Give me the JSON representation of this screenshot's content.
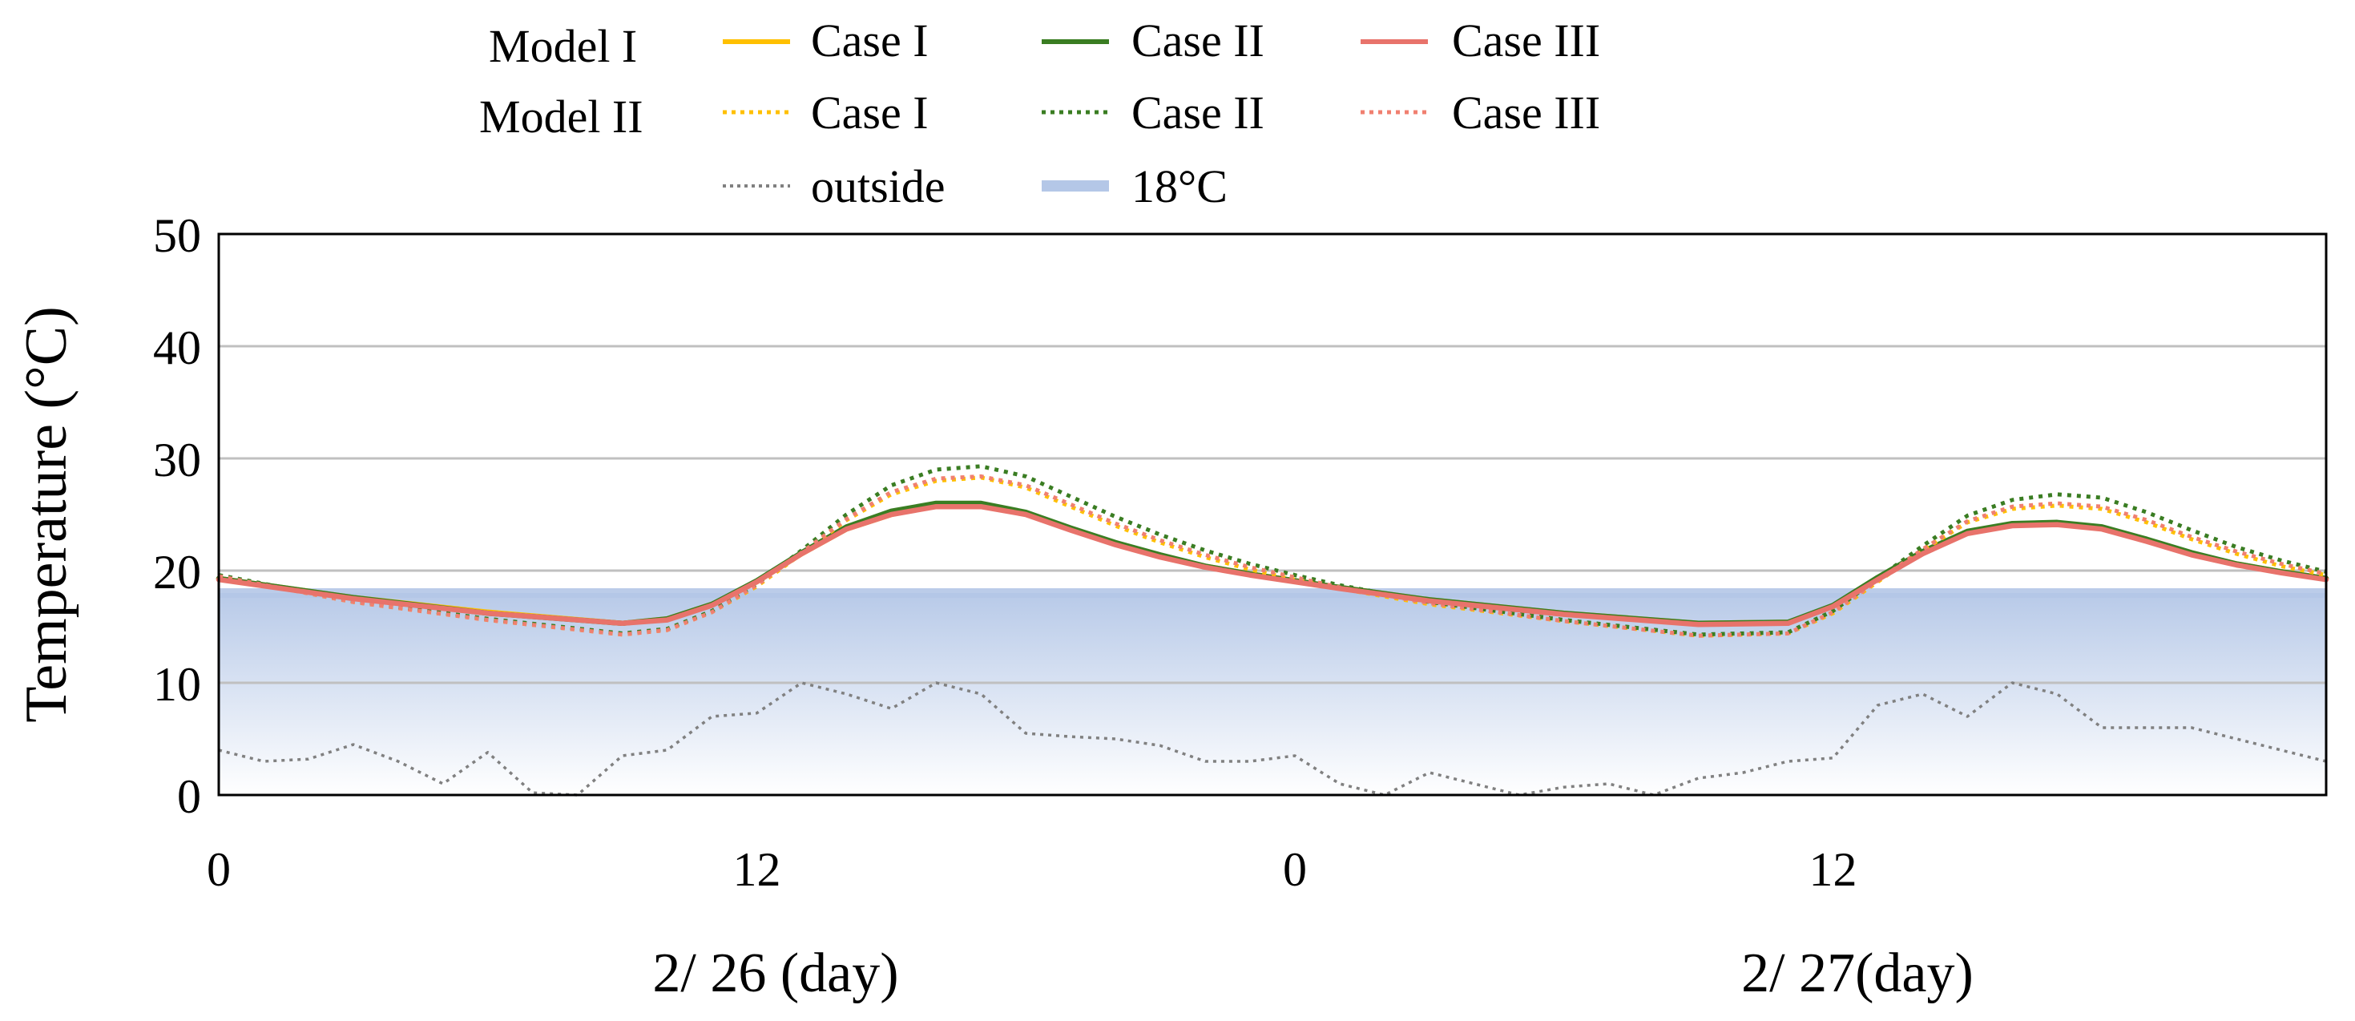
{
  "chart_data": {
    "type": "line",
    "ylabel": "Temperature (°C)",
    "ylim": [
      0,
      50
    ],
    "yticks": [
      "0",
      "10",
      "20",
      "30",
      "40",
      "50"
    ],
    "ytick_values": [
      0,
      10,
      20,
      30,
      40,
      50
    ],
    "xlim": [
      0,
      47
    ],
    "x_tick_values": [
      0,
      12,
      24,
      36
    ],
    "xticks": [
      "0",
      "12",
      "0",
      "12"
    ],
    "day_labels": [
      "2/ 26 (day)",
      "2/ 27(day)"
    ],
    "grid": true,
    "legend": {
      "row_labels": [
        "Model I",
        "Model II"
      ],
      "entries": [
        "Case I",
        "Case II",
        "Case III",
        "Case I",
        "Case II",
        "Case III",
        "outside",
        "18°C"
      ]
    },
    "band": {
      "label": "18°C",
      "value": 18,
      "color": "#b4c7e7"
    },
    "series": [
      {
        "name": "Model I Case I",
        "color": "#ffc000",
        "dash": "solid",
        "x": [
          0,
          3,
          6,
          9,
          10,
          11,
          12,
          13,
          14,
          15,
          16,
          17,
          18,
          19,
          20,
          21,
          22,
          23,
          24,
          25,
          27,
          30,
          33,
          35,
          36,
          37,
          38,
          39,
          40,
          41,
          42,
          43,
          44,
          45,
          46,
          47
        ],
        "values": [
          19.3,
          17.6,
          16.3,
          15.3,
          15.7,
          17.0,
          19.0,
          21.5,
          23.7,
          25.0,
          25.8,
          25.9,
          25.1,
          23.7,
          22.4,
          21.3,
          20.4,
          19.7,
          19.1,
          18.5,
          17.4,
          16.2,
          15.3,
          15.4,
          16.8,
          19.3,
          21.6,
          23.4,
          24.1,
          24.2,
          23.8,
          22.7,
          21.5,
          20.6,
          19.9,
          19.3
        ]
      },
      {
        "name": "Model I Case II",
        "color": "#3a7d22",
        "dash": "solid",
        "x": [
          0,
          3,
          6,
          9,
          10,
          11,
          12,
          13,
          14,
          15,
          16,
          17,
          18,
          19,
          20,
          21,
          22,
          23,
          24,
          25,
          27,
          30,
          33,
          35,
          36,
          37,
          38,
          39,
          40,
          41,
          42,
          43,
          44,
          45,
          46,
          47
        ],
        "values": [
          19.3,
          17.6,
          16.2,
          15.3,
          15.7,
          17.0,
          19.1,
          21.6,
          23.9,
          25.3,
          26.0,
          26.0,
          25.2,
          23.8,
          22.5,
          21.4,
          20.4,
          19.7,
          19.1,
          18.5,
          17.4,
          16.2,
          15.3,
          15.4,
          16.9,
          19.4,
          21.7,
          23.5,
          24.2,
          24.3,
          23.9,
          22.8,
          21.6,
          20.6,
          19.9,
          19.3
        ]
      },
      {
        "name": "Model I Case III",
        "color": "#e8736b",
        "dash": "solid",
        "x": [
          0,
          3,
          6,
          9,
          10,
          11,
          12,
          13,
          14,
          15,
          16,
          17,
          18,
          19,
          20,
          21,
          22,
          23,
          24,
          25,
          27,
          30,
          33,
          35,
          36,
          37,
          38,
          39,
          40,
          41,
          42,
          43,
          44,
          45,
          46,
          47
        ],
        "values": [
          19.2,
          17.5,
          16.2,
          15.3,
          15.6,
          16.9,
          19.0,
          21.5,
          23.7,
          25.0,
          25.7,
          25.7,
          25.0,
          23.6,
          22.3,
          21.2,
          20.3,
          19.6,
          19.0,
          18.4,
          17.3,
          16.1,
          15.2,
          15.3,
          16.8,
          19.2,
          21.5,
          23.3,
          24.0,
          24.1,
          23.7,
          22.6,
          21.4,
          20.5,
          19.8,
          19.2
        ]
      },
      {
        "name": "Model II Case I",
        "color": "#ffc000",
        "dash": "dotted",
        "x": [
          0,
          3,
          6,
          9,
          10,
          11,
          12,
          13,
          14,
          15,
          16,
          17,
          18,
          19,
          20,
          21,
          22,
          23,
          24,
          25,
          27,
          30,
          33,
          35,
          36,
          37,
          38,
          39,
          40,
          41,
          42,
          43,
          44,
          45,
          46,
          47
        ],
        "values": [
          19.5,
          17.2,
          15.6,
          14.3,
          14.7,
          16.3,
          18.6,
          21.5,
          24.5,
          26.8,
          28.0,
          28.3,
          27.4,
          25.7,
          24.0,
          22.5,
          21.2,
          20.1,
          19.2,
          18.4,
          17.0,
          15.5,
          14.2,
          14.4,
          16.2,
          19.0,
          21.8,
          24.3,
          25.5,
          25.8,
          25.5,
          24.3,
          22.8,
          21.5,
          20.4,
          19.6
        ]
      },
      {
        "name": "Model II Case II",
        "color": "#3a7d22",
        "dash": "dotted",
        "x": [
          0,
          3,
          6,
          9,
          10,
          11,
          12,
          13,
          14,
          15,
          16,
          17,
          18,
          19,
          20,
          21,
          22,
          23,
          24,
          25,
          27,
          30,
          33,
          35,
          36,
          37,
          38,
          39,
          40,
          41,
          42,
          43,
          44,
          45,
          46,
          47
        ],
        "values": [
          19.6,
          17.3,
          15.7,
          14.4,
          14.8,
          16.4,
          18.8,
          21.8,
          25.0,
          27.6,
          29.0,
          29.3,
          28.4,
          26.6,
          24.8,
          23.2,
          21.8,
          20.6,
          19.6,
          18.7,
          17.2,
          15.6,
          14.3,
          14.5,
          16.4,
          19.3,
          22.2,
          24.9,
          26.3,
          26.8,
          26.5,
          25.2,
          23.6,
          22.1,
          20.9,
          19.9
        ]
      },
      {
        "name": "Model II Case III",
        "color": "#f08070",
        "dash": "dotted",
        "x": [
          0,
          3,
          6,
          9,
          10,
          11,
          12,
          13,
          14,
          15,
          16,
          17,
          18,
          19,
          20,
          21,
          22,
          23,
          24,
          25,
          27,
          30,
          33,
          35,
          36,
          37,
          38,
          39,
          40,
          41,
          42,
          43,
          44,
          45,
          46,
          47
        ],
        "values": [
          19.5,
          17.2,
          15.6,
          14.3,
          14.7,
          16.3,
          18.7,
          21.6,
          24.6,
          27.0,
          28.2,
          28.4,
          27.6,
          25.9,
          24.2,
          22.7,
          21.4,
          20.3,
          19.4,
          18.5,
          17.1,
          15.5,
          14.2,
          14.4,
          16.3,
          19.1,
          21.9,
          24.4,
          25.7,
          26.0,
          25.7,
          24.5,
          23.0,
          21.7,
          20.6,
          19.7
        ]
      },
      {
        "name": "outside",
        "color": "#808080",
        "dash": "dotted",
        "x": [
          0,
          1,
          2,
          3,
          4,
          5,
          6,
          7,
          8,
          9,
          10,
          11,
          12,
          13,
          14,
          15,
          16,
          17,
          18,
          19,
          20,
          21,
          22,
          23,
          24,
          25,
          26,
          27,
          28,
          29,
          30,
          31,
          32,
          33,
          34,
          35,
          36,
          37,
          38,
          39,
          40,
          41,
          42,
          43,
          44,
          45,
          46,
          47
        ],
        "values": [
          4.0,
          3.0,
          3.2,
          4.5,
          3.0,
          1.0,
          3.8,
          0.2,
          0.0,
          3.5,
          4.0,
          7.0,
          7.3,
          10.0,
          9.0,
          7.7,
          10.0,
          9.0,
          5.5,
          5.2,
          5.0,
          4.4,
          3.0,
          3.0,
          3.5,
          1.0,
          0.0,
          2.0,
          1.0,
          0.0,
          0.7,
          1.0,
          0.0,
          1.5,
          2.0,
          3.0,
          3.3,
          8.0,
          9.0,
          7.0,
          10.0,
          9.0,
          6.0,
          6.0,
          6.0,
          5.0,
          4.0,
          3.0
        ]
      }
    ]
  }
}
